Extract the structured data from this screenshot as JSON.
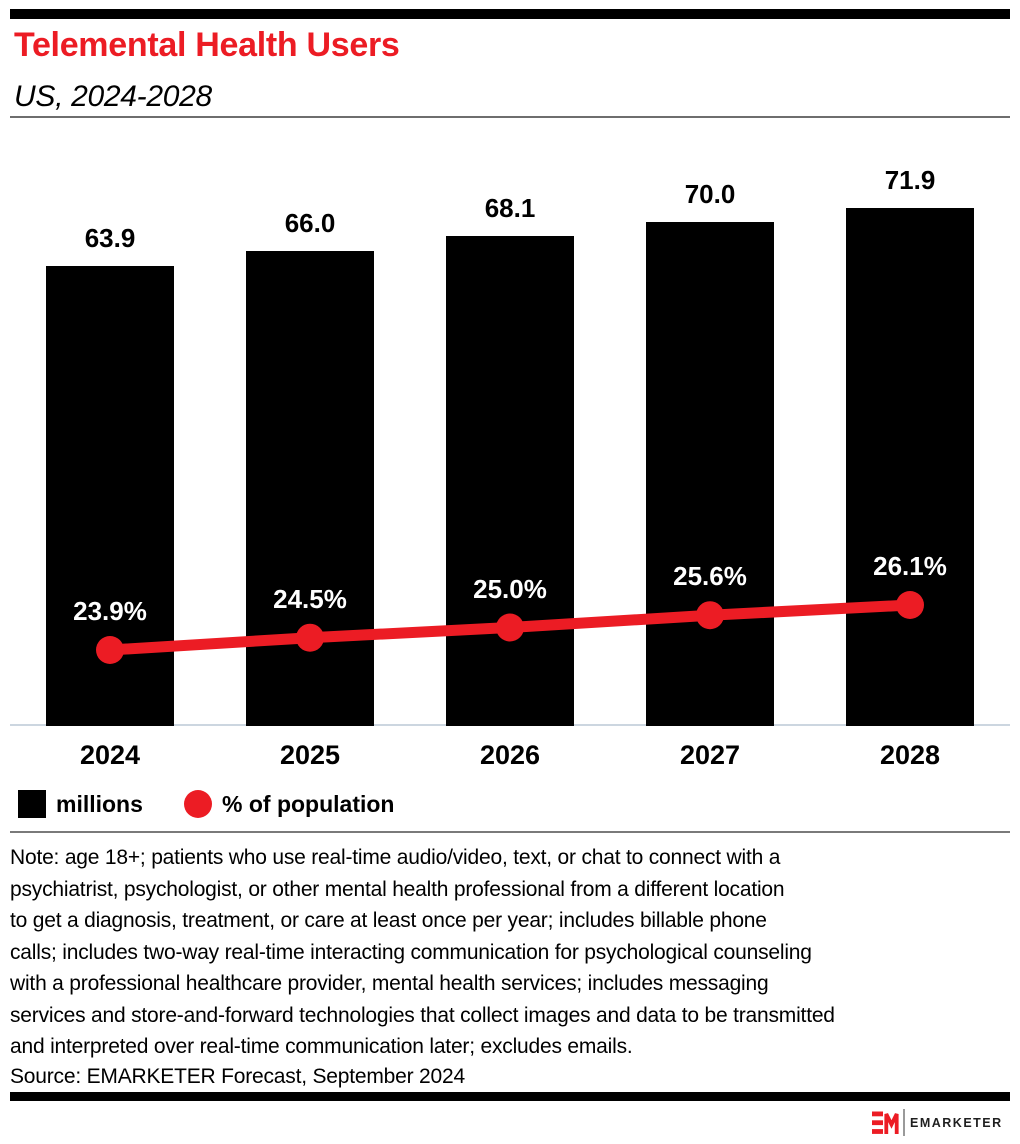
{
  "header": {
    "title": "Telemental Health Users",
    "subtitle": "US, 2024-2028"
  },
  "colors": {
    "accent_red": "#ec1c24",
    "bar_black": "#000000",
    "axis_line": "#ccd6e0",
    "divider_gray": "#6e6e6e"
  },
  "chart_data": {
    "type": "bar",
    "title": "Telemental Health Users",
    "subtitle": "US, 2024-2028",
    "categories": [
      "2024",
      "2025",
      "2026",
      "2027",
      "2028"
    ],
    "series": [
      {
        "name": "millions",
        "type": "bar",
        "color": "#000000",
        "values": [
          63.9,
          66.0,
          68.1,
          70.0,
          71.9
        ],
        "labels": [
          "63.9",
          "66.0",
          "68.1",
          "70.0",
          "71.9"
        ]
      },
      {
        "name": "% of population",
        "type": "line",
        "color": "#ec1c24",
        "values": [
          23.9,
          24.5,
          25.0,
          25.6,
          26.1
        ],
        "labels": [
          "23.9%",
          "24.5%",
          "25.0%",
          "25.6%",
          "26.1%"
        ]
      }
    ],
    "xlabel": "",
    "ylabel": "",
    "grid": false,
    "legend_position": "bottom"
  },
  "legend": {
    "items": [
      {
        "label": "millions",
        "swatch": "square",
        "color": "#000000"
      },
      {
        "label": "% of population",
        "swatch": "circle",
        "color": "#ec1c24"
      }
    ]
  },
  "note_lines": [
    "Note: age 18+; patients who use real-time audio/video, text, or chat to connect with a",
    "psychiatrist, psychologist, or other mental health professional from a different location",
    "to get a diagnosis, treatment, or care at least once per year; includes billable phone",
    "calls; includes two-way real-time interacting communication for psychological counseling",
    "with a professional healthcare provider, mental health services; includes messaging",
    "services and store-and-forward technologies that collect images and data to be transmitted",
    "and interpreted over real-time communication later; excludes emails."
  ],
  "source": "Source: EMARKETER Forecast, September 2024",
  "footer": {
    "logo_monogram": "EM",
    "logo_text": "EMARKETER"
  }
}
